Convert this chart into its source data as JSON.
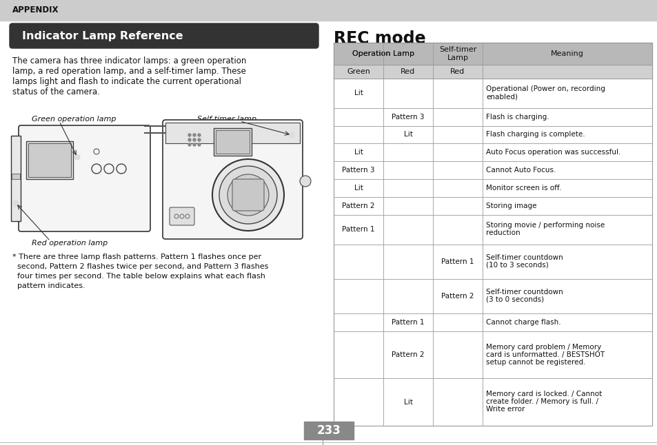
{
  "page_bg": "#ffffff",
  "appendix_bar_color": "#cccccc",
  "appendix_text": "APPENDIX",
  "title_bg": "#333333",
  "title_text": "Indicator Lamp Reference",
  "title_text_color": "#ffffff",
  "body_text_lines": [
    "The camera has three indicator lamps: a green operation",
    "lamp, a red operation lamp, and a self-timer lamp. These",
    "lamps light and flash to indicate the current operational",
    "status of the camera."
  ],
  "footnote_lines": [
    "* There are three lamp flash patterns. Pattern 1 flashes once per",
    "  second, Pattern 2 flashes twice per second, and Pattern 3 flashes",
    "  four times per second. The table below explains what each flash",
    "  pattern indicates."
  ],
  "green_lamp_label": "Green operation lamp",
  "red_lamp_label": "Red operation lamp",
  "self_timer_label": "Self-timer lamp",
  "rec_mode_title": "REC mode",
  "table_header_bg": "#b8b8b8",
  "table_subheader_bg": "#d0d0d0",
  "table_border_color": "#999999",
  "table_rows": [
    [
      "Lit",
      "",
      "",
      "Operational (Power on, recording\nenabled)"
    ],
    [
      "",
      "Pattern 3",
      "",
      "Flash is charging."
    ],
    [
      "",
      "Lit",
      "",
      "Flash charging is complete."
    ],
    [
      "Lit",
      "",
      "",
      "Auto Focus operation was successful."
    ],
    [
      "Pattern 3",
      "",
      "",
      "Cannot Auto Focus."
    ],
    [
      "Lit",
      "",
      "",
      "Monitor screen is off."
    ],
    [
      "Pattern 2",
      "",
      "",
      "Storing image"
    ],
    [
      "Pattern 1",
      "",
      "",
      "Storing movie / performing noise\nreduction"
    ],
    [
      "",
      "",
      "Pattern 1",
      "Self-timer countdown\n(10 to 3 seconds)"
    ],
    [
      "",
      "",
      "Pattern 2",
      "Self-timer countdown\n(3 to 0 seconds)"
    ],
    [
      "",
      "Pattern 1",
      "",
      "Cannot charge flash."
    ],
    [
      "",
      "Pattern 2",
      "",
      "Memory card problem / Memory\ncard is unformatted. / BESTSHOT\nsetup cannot be registered."
    ],
    [
      "",
      "Lit",
      "",
      "Memory card is locked. / Cannot\ncreate folder. / Memory is full. /\nWrite error"
    ]
  ],
  "page_number": "233",
  "page_number_bg": "#888888",
  "page_number_color": "#ffffff",
  "divider_color": "#aaaaaa"
}
